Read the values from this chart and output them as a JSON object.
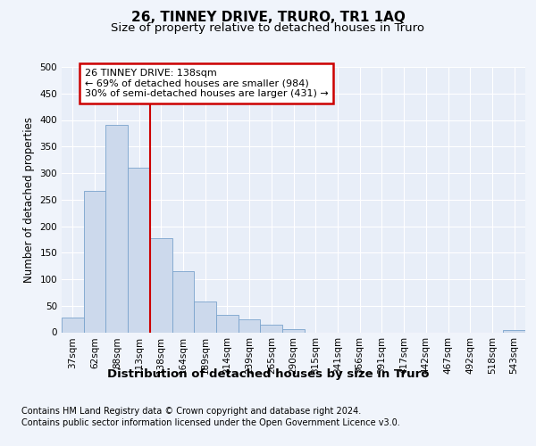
{
  "title": "26, TINNEY DRIVE, TRURO, TR1 1AQ",
  "subtitle": "Size of property relative to detached houses in Truro",
  "xlabel": "Distribution of detached houses by size in Truro",
  "ylabel": "Number of detached properties",
  "categories": [
    "37sqm",
    "62sqm",
    "88sqm",
    "113sqm",
    "138sqm",
    "164sqm",
    "189sqm",
    "214sqm",
    "239sqm",
    "265sqm",
    "290sqm",
    "315sqm",
    "341sqm",
    "366sqm",
    "391sqm",
    "417sqm",
    "442sqm",
    "467sqm",
    "492sqm",
    "518sqm",
    "543sqm"
  ],
  "values": [
    28,
    267,
    391,
    310,
    178,
    115,
    58,
    32,
    25,
    15,
    6,
    0,
    0,
    0,
    0,
    0,
    0,
    0,
    0,
    0,
    4
  ],
  "bar_color": "#ccd9ec",
  "bar_edge_color": "#7aa3cc",
  "annotation_text": "26 TINNEY DRIVE: 138sqm\n← 69% of detached houses are smaller (984)\n30% of semi-detached houses are larger (431) →",
  "annotation_box_color": "white",
  "annotation_box_edge_color": "#cc0000",
  "line_color": "#cc0000",
  "ylim": [
    0,
    500
  ],
  "yticks": [
    0,
    50,
    100,
    150,
    200,
    250,
    300,
    350,
    400,
    450,
    500
  ],
  "bg_color": "#f0f4fb",
  "plot_bg_color": "#e8eef8",
  "footer_line1": "Contains HM Land Registry data © Crown copyright and database right 2024.",
  "footer_line2": "Contains public sector information licensed under the Open Government Licence v3.0.",
  "title_fontsize": 11,
  "subtitle_fontsize": 9.5,
  "xlabel_fontsize": 9.5,
  "ylabel_fontsize": 8.5,
  "tick_fontsize": 7.5,
  "annotation_fontsize": 8,
  "footer_fontsize": 7
}
